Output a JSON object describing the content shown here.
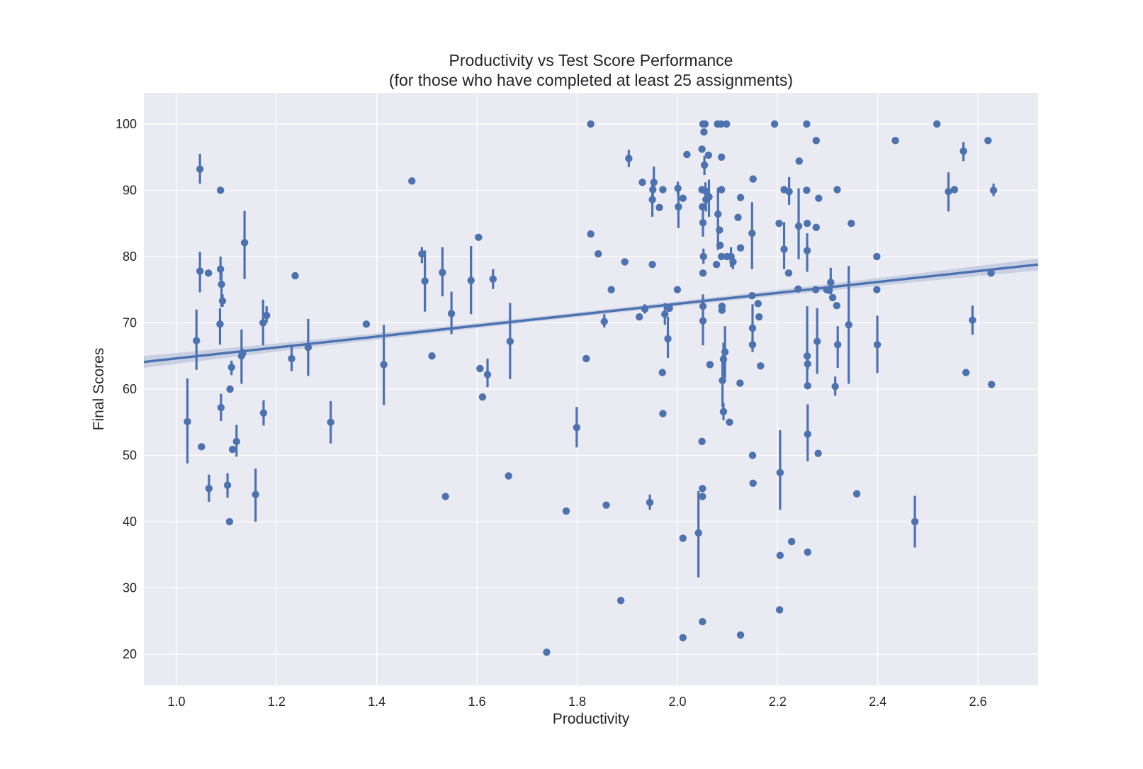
{
  "chart_data": {
    "type": "scatter",
    "title_line1": "Productivity vs Test Score Performance",
    "title_line2": "(for those who have completed at least 25 assignments)",
    "xlabel": "Productivity",
    "ylabel": "Final Scores",
    "xlim": [
      0.935,
      2.72
    ],
    "ylim": [
      15.3,
      104.7
    ],
    "xticks": [
      1.0,
      1.2,
      1.4,
      1.6,
      1.8,
      2.0,
      2.2,
      2.4,
      2.6
    ],
    "xtick_labels": [
      "1.0",
      "1.2",
      "1.4",
      "1.6",
      "1.8",
      "2.0",
      "2.2",
      "2.4",
      "2.6"
    ],
    "yticks": [
      20,
      30,
      40,
      50,
      60,
      70,
      80,
      90,
      100
    ],
    "ytick_labels": [
      "20",
      "30",
      "40",
      "50",
      "60",
      "70",
      "80",
      "90",
      "100"
    ],
    "grid": true,
    "colors": {
      "background": "#EAEAF2",
      "grid": "#FFFFFF",
      "series": "#4C72B0",
      "band": "#C2CAE0"
    },
    "regression": {
      "x": [
        0.935,
        2.72
      ],
      "y": [
        64.1,
        78.8
      ],
      "ci_halfwidth_ends": 0.9,
      "ci_halfwidth_center": 0.35
    },
    "points": [
      {
        "x": 1.022,
        "y": 55.1,
        "lo": 48.8,
        "hi": 61.6
      },
      {
        "x": 1.04,
        "y": 67.3,
        "lo": 62.9,
        "hi": 72.0
      },
      {
        "x": 1.047,
        "y": 77.8,
        "lo": 74.6,
        "hi": 80.7
      },
      {
        "x": 1.047,
        "y": 93.2,
        "lo": 91.0,
        "hi": 95.5
      },
      {
        "x": 1.05,
        "y": 51.3,
        "lo": 51.0,
        "hi": 51.8
      },
      {
        "x": 1.064,
        "y": 77.5
      },
      {
        "x": 1.065,
        "y": 45.0,
        "lo": 43.0,
        "hi": 47.1
      },
      {
        "x": 1.087,
        "y": 69.8,
        "lo": 66.7,
        "hi": 72.2
      },
      {
        "x": 1.088,
        "y": 90.0
      },
      {
        "x": 1.088,
        "y": 78.1,
        "lo": 76.4,
        "hi": 80.0
      },
      {
        "x": 1.089,
        "y": 57.2,
        "lo": 55.2,
        "hi": 59.3
      },
      {
        "x": 1.09,
        "y": 75.8,
        "lo": 72.4,
        "hi": 77.6
      },
      {
        "x": 1.092,
        "y": 73.3,
        "lo": 72.4,
        "hi": 74.3
      },
      {
        "x": 1.102,
        "y": 45.5,
        "lo": 43.6,
        "hi": 47.3
      },
      {
        "x": 1.106,
        "y": 40.0
      },
      {
        "x": 1.107,
        "y": 60.0
      },
      {
        "x": 1.11,
        "y": 63.3,
        "lo": 62.1,
        "hi": 64.3
      },
      {
        "x": 1.112,
        "y": 50.9
      },
      {
        "x": 1.12,
        "y": 52.1,
        "lo": 49.8,
        "hi": 54.6
      },
      {
        "x": 1.13,
        "y": 65.0,
        "lo": 60.8,
        "hi": 69.0
      },
      {
        "x": 1.132,
        "y": 65.4,
        "lo": 64.7,
        "hi": 66.1
      },
      {
        "x": 1.136,
        "y": 82.1,
        "lo": 76.6,
        "hi": 86.9
      },
      {
        "x": 1.158,
        "y": 44.1,
        "lo": 40.0,
        "hi": 48.0
      },
      {
        "x": 1.173,
        "y": 70.0,
        "lo": 66.6,
        "hi": 73.5
      },
      {
        "x": 1.174,
        "y": 56.4,
        "lo": 54.5,
        "hi": 58.3
      },
      {
        "x": 1.18,
        "y": 71.1,
        "lo": 70.0,
        "hi": 72.5
      },
      {
        "x": 1.23,
        "y": 64.6,
        "lo": 62.7,
        "hi": 66.5
      },
      {
        "x": 1.237,
        "y": 77.1
      },
      {
        "x": 1.263,
        "y": 66.3,
        "lo": 62.0,
        "hi": 70.6
      },
      {
        "x": 1.308,
        "y": 55.0,
        "lo": 51.8,
        "hi": 58.2
      },
      {
        "x": 1.379,
        "y": 69.8
      },
      {
        "x": 1.414,
        "y": 63.7,
        "lo": 57.6,
        "hi": 69.7
      },
      {
        "x": 1.47,
        "y": 91.4,
        "lo": 91.0,
        "hi": 91.8
      },
      {
        "x": 1.49,
        "y": 80.4,
        "lo": 79.0,
        "hi": 81.4
      },
      {
        "x": 1.496,
        "y": 76.3,
        "lo": 71.7,
        "hi": 80.9
      },
      {
        "x": 1.51,
        "y": 65.0
      },
      {
        "x": 1.531,
        "y": 77.6,
        "lo": 74.0,
        "hi": 81.4
      },
      {
        "x": 1.537,
        "y": 43.8
      },
      {
        "x": 1.549,
        "y": 71.4,
        "lo": 68.3,
        "hi": 74.7
      },
      {
        "x": 1.588,
        "y": 76.4,
        "lo": 71.3,
        "hi": 81.6
      },
      {
        "x": 1.603,
        "y": 82.9
      },
      {
        "x": 1.606,
        "y": 63.1
      },
      {
        "x": 1.611,
        "y": 58.8
      },
      {
        "x": 1.621,
        "y": 62.2,
        "lo": 60.3,
        "hi": 64.6
      },
      {
        "x": 1.632,
        "y": 76.6,
        "lo": 75.1,
        "hi": 78.1
      },
      {
        "x": 1.663,
        "y": 46.9
      },
      {
        "x": 1.666,
        "y": 67.2,
        "lo": 61.5,
        "hi": 73.0
      },
      {
        "x": 1.739,
        "y": 20.3
      },
      {
        "x": 1.778,
        "y": 41.6
      },
      {
        "x": 1.799,
        "y": 54.2,
        "lo": 51.2,
        "hi": 57.3
      },
      {
        "x": 1.818,
        "y": 64.6
      },
      {
        "x": 1.827,
        "y": 100.0
      },
      {
        "x": 1.827,
        "y": 83.4
      },
      {
        "x": 1.842,
        "y": 80.4
      },
      {
        "x": 1.854,
        "y": 70.2,
        "lo": 69.3,
        "hi": 71.3
      },
      {
        "x": 1.858,
        "y": 42.5
      },
      {
        "x": 1.868,
        "y": 75.0
      },
      {
        "x": 1.887,
        "y": 28.1
      },
      {
        "x": 1.895,
        "y": 79.2
      },
      {
        "x": 1.903,
        "y": 94.8,
        "lo": 93.5,
        "hi": 96.1
      },
      {
        "x": 1.924,
        "y": 70.9
      },
      {
        "x": 1.93,
        "y": 91.2
      },
      {
        "x": 1.935,
        "y": 72.1,
        "lo": 71.4,
        "hi": 72.8
      },
      {
        "x": 1.945,
        "y": 42.9,
        "lo": 41.8,
        "hi": 44.1
      },
      {
        "x": 1.95,
        "y": 78.8
      },
      {
        "x": 1.95,
        "y": 88.6,
        "lo": 86.0,
        "hi": 91.1
      },
      {
        "x": 1.951,
        "y": 90.1,
        "lo": 88.8,
        "hi": 91.4
      },
      {
        "x": 1.953,
        "y": 91.2,
        "lo": 89.8,
        "hi": 93.6
      },
      {
        "x": 1.964,
        "y": 87.4
      },
      {
        "x": 1.97,
        "y": 62.5
      },
      {
        "x": 1.971,
        "y": 90.1
      },
      {
        "x": 1.971,
        "y": 56.3
      },
      {
        "x": 1.975,
        "y": 71.3,
        "lo": 69.7,
        "hi": 73.0
      },
      {
        "x": 1.981,
        "y": 67.6,
        "lo": 64.7,
        "hi": 70.9
      },
      {
        "x": 1.984,
        "y": 72.2
      },
      {
        "x": 2.0,
        "y": 75.0
      },
      {
        "x": 2.001,
        "y": 90.3,
        "lo": 89.2,
        "hi": 91.3
      },
      {
        "x": 2.002,
        "y": 87.5,
        "lo": 84.3,
        "hi": 90.3
      },
      {
        "x": 2.011,
        "y": 88.8
      },
      {
        "x": 2.011,
        "y": 37.5
      },
      {
        "x": 2.011,
        "y": 22.5
      },
      {
        "x": 2.019,
        "y": 95.4
      },
      {
        "x": 2.042,
        "y": 38.3,
        "lo": 31.6,
        "hi": 44.6
      },
      {
        "x": 2.049,
        "y": 96.2
      },
      {
        "x": 2.049,
        "y": 90.1
      },
      {
        "x": 2.049,
        "y": 52.1
      },
      {
        "x": 2.05,
        "y": 45.0
      },
      {
        "x": 2.05,
        "y": 43.8
      },
      {
        "x": 2.05,
        "y": 24.9
      },
      {
        "x": 2.05,
        "y": 87.5
      },
      {
        "x": 2.051,
        "y": 85.1,
        "lo": 83.0,
        "hi": 87.5
      },
      {
        "x": 2.051,
        "y": 100.0
      },
      {
        "x": 2.051,
        "y": 77.5
      },
      {
        "x": 2.051,
        "y": 72.5,
        "lo": 70.5,
        "hi": 74.3
      },
      {
        "x": 2.051,
        "y": 70.3,
        "lo": 66.6,
        "hi": 74.0
      },
      {
        "x": 2.052,
        "y": 80.0,
        "lo": 78.9,
        "hi": 81.2
      },
      {
        "x": 2.053,
        "y": 98.8
      },
      {
        "x": 2.054,
        "y": 93.8,
        "lo": 92.3,
        "hi": 95.2
      },
      {
        "x": 2.055,
        "y": 100.0
      },
      {
        "x": 2.056,
        "y": 89.9,
        "lo": 88.0,
        "hi": 91.2
      },
      {
        "x": 2.057,
        "y": 88.6,
        "lo": 86.8,
        "hi": 90.4
      },
      {
        "x": 2.062,
        "y": 95.3
      },
      {
        "x": 2.063,
        "y": 89.0,
        "lo": 86.0,
        "hi": 91.6
      },
      {
        "x": 2.065,
        "y": 63.7
      },
      {
        "x": 2.078,
        "y": 78.8
      },
      {
        "x": 2.08,
        "y": 100.0
      },
      {
        "x": 2.081,
        "y": 86.4,
        "lo": 81.0,
        "hi": 90.4
      },
      {
        "x": 2.084,
        "y": 84.0
      },
      {
        "x": 2.085,
        "y": 81.7
      },
      {
        "x": 2.087,
        "y": 100.0
      },
      {
        "x": 2.088,
        "y": 95.0
      },
      {
        "x": 2.088,
        "y": 90.1
      },
      {
        "x": 2.088,
        "y": 80.0
      },
      {
        "x": 2.089,
        "y": 72.5
      },
      {
        "x": 2.089,
        "y": 71.9
      },
      {
        "x": 2.09,
        "y": 61.3,
        "lo": 57.3,
        "hi": 65.1
      },
      {
        "x": 2.092,
        "y": 64.5,
        "lo": 62.0,
        "hi": 67.0
      },
      {
        "x": 2.092,
        "y": 56.6,
        "lo": 55.3,
        "hi": 57.9
      },
      {
        "x": 2.095,
        "y": 65.6,
        "lo": 61.7,
        "hi": 69.5
      },
      {
        "x": 2.098,
        "y": 100.0
      },
      {
        "x": 2.099,
        "y": 80.0
      },
      {
        "x": 2.104,
        "y": 55.0
      },
      {
        "x": 2.107,
        "y": 80.0,
        "lo": 78.4,
        "hi": 81.4
      },
      {
        "x": 2.111,
        "y": 79.2,
        "lo": 78.1,
        "hi": 80.3
      },
      {
        "x": 2.121,
        "y": 85.9
      },
      {
        "x": 2.125,
        "y": 60.9
      },
      {
        "x": 2.126,
        "y": 81.3
      },
      {
        "x": 2.126,
        "y": 88.9
      },
      {
        "x": 2.126,
        "y": 22.9
      },
      {
        "x": 2.149,
        "y": 83.5,
        "lo": 78.1,
        "hi": 88.2
      },
      {
        "x": 2.149,
        "y": 74.1
      },
      {
        "x": 2.15,
        "y": 69.2,
        "lo": 65.9,
        "hi": 72.8
      },
      {
        "x": 2.15,
        "y": 66.7,
        "lo": 65.6,
        "hi": 67.8
      },
      {
        "x": 2.15,
        "y": 50.0
      },
      {
        "x": 2.151,
        "y": 45.8
      },
      {
        "x": 2.151,
        "y": 91.7
      },
      {
        "x": 2.161,
        "y": 72.9
      },
      {
        "x": 2.163,
        "y": 70.9
      },
      {
        "x": 2.166,
        "y": 63.5
      },
      {
        "x": 2.194,
        "y": 100.0
      },
      {
        "x": 2.203,
        "y": 85.0
      },
      {
        "x": 2.204,
        "y": 26.7
      },
      {
        "x": 2.205,
        "y": 47.4,
        "lo": 41.8,
        "hi": 53.8
      },
      {
        "x": 2.205,
        "y": 34.9
      },
      {
        "x": 2.213,
        "y": 90.1
      },
      {
        "x": 2.213,
        "y": 81.1,
        "lo": 78.1,
        "hi": 85.2
      },
      {
        "x": 2.222,
        "y": 77.5
      },
      {
        "x": 2.223,
        "y": 89.8,
        "lo": 87.8,
        "hi": 92.0
      },
      {
        "x": 2.228,
        "y": 37.0
      },
      {
        "x": 2.241,
        "y": 75.1
      },
      {
        "x": 2.242,
        "y": 84.6,
        "lo": 79.6,
        "hi": 90.3
      },
      {
        "x": 2.243,
        "y": 94.4,
        "lo": 94.0,
        "hi": 94.8
      },
      {
        "x": 2.258,
        "y": 100.0
      },
      {
        "x": 2.258,
        "y": 90.0
      },
      {
        "x": 2.259,
        "y": 85.0
      },
      {
        "x": 2.259,
        "y": 80.9,
        "lo": 77.7,
        "hi": 83.5
      },
      {
        "x": 2.259,
        "y": 65.0,
        "lo": 60.9,
        "hi": 72.5
      },
      {
        "x": 2.26,
        "y": 63.8,
        "lo": 62.9,
        "hi": 64.7
      },
      {
        "x": 2.26,
        "y": 60.5
      },
      {
        "x": 2.26,
        "y": 53.2,
        "lo": 49.1,
        "hi": 57.7
      },
      {
        "x": 2.26,
        "y": 35.4
      },
      {
        "x": 2.276,
        "y": 75.0
      },
      {
        "x": 2.277,
        "y": 97.5
      },
      {
        "x": 2.277,
        "y": 84.4
      },
      {
        "x": 2.279,
        "y": 67.2,
        "lo": 62.3,
        "hi": 72.2
      },
      {
        "x": 2.281,
        "y": 50.3,
        "lo": 49.9,
        "hi": 50.6
      },
      {
        "x": 2.282,
        "y": 88.8
      },
      {
        "x": 2.298,
        "y": 75.0
      },
      {
        "x": 2.303,
        "y": 74.9
      },
      {
        "x": 2.306,
        "y": 76.1,
        "lo": 74.3,
        "hi": 78.3
      },
      {
        "x": 2.31,
        "y": 73.8
      },
      {
        "x": 2.315,
        "y": 60.4,
        "lo": 59.0,
        "hi": 61.9
      },
      {
        "x": 2.318,
        "y": 72.6
      },
      {
        "x": 2.319,
        "y": 90.1
      },
      {
        "x": 2.32,
        "y": 66.7,
        "lo": 63.2,
        "hi": 69.5
      },
      {
        "x": 2.342,
        "y": 69.7,
        "lo": 60.8,
        "hi": 78.6
      },
      {
        "x": 2.347,
        "y": 85.0
      },
      {
        "x": 2.358,
        "y": 44.2
      },
      {
        "x": 2.398,
        "y": 80.0
      },
      {
        "x": 2.398,
        "y": 75.0
      },
      {
        "x": 2.399,
        "y": 66.7,
        "lo": 62.4,
        "hi": 71.1
      },
      {
        "x": 2.435,
        "y": 97.5
      },
      {
        "x": 2.474,
        "y": 40.0,
        "lo": 36.1,
        "hi": 43.9
      },
      {
        "x": 2.518,
        "y": 100.0
      },
      {
        "x": 2.541,
        "y": 89.8,
        "lo": 86.8,
        "hi": 92.7
      },
      {
        "x": 2.553,
        "y": 90.1
      },
      {
        "x": 2.571,
        "y": 95.9,
        "lo": 94.4,
        "hi": 97.3
      },
      {
        "x": 2.576,
        "y": 62.5
      },
      {
        "x": 2.589,
        "y": 70.4,
        "lo": 68.2,
        "hi": 72.6
      },
      {
        "x": 2.62,
        "y": 97.5
      },
      {
        "x": 2.626,
        "y": 77.5
      },
      {
        "x": 2.627,
        "y": 60.7
      },
      {
        "x": 2.631,
        "y": 90.0,
        "lo": 89.1,
        "hi": 91.0
      }
    ]
  }
}
